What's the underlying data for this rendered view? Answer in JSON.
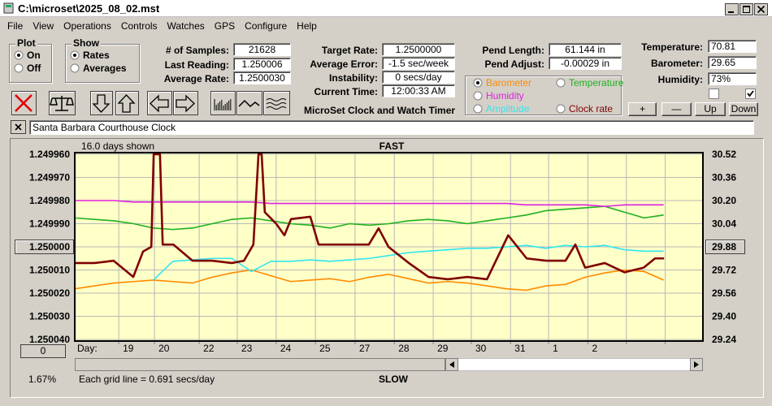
{
  "window": {
    "title": "C:\\microset\\2025_08_02.mst"
  },
  "menu": [
    "File",
    "View",
    "Operations",
    "Controls",
    "Watches",
    "GPS",
    "Configure",
    "Help"
  ],
  "plot_group": {
    "title": "Plot",
    "options": [
      "On",
      "Off"
    ],
    "selected": 0
  },
  "show_group": {
    "title": "Show",
    "options": [
      "Rates",
      "Averages"
    ],
    "selected": 0
  },
  "readouts_1": [
    {
      "label": "# of Samples:",
      "value": "21628"
    },
    {
      "label": "Last Reading:",
      "value": "1.250006"
    },
    {
      "label": "Average Rate:",
      "value": "1.2500030"
    }
  ],
  "readouts_2": [
    {
      "label": "Target Rate:",
      "value": "1.2500000"
    },
    {
      "label": "Average Error:",
      "value": "-1.5 sec/week"
    },
    {
      "label": "Instability:",
      "value": "0 secs/day"
    },
    {
      "label": "Current Time:",
      "value": "12:00:33 AM"
    }
  ],
  "readouts_3": [
    {
      "label": "Pend Length:",
      "value": "61.144 in"
    },
    {
      "label": "Pend Adjust:",
      "value": "-0.00029 in"
    }
  ],
  "readouts_4": [
    {
      "label": "Temperature:",
      "value": "70.81"
    },
    {
      "label": "Barometer:",
      "value": "29.65"
    },
    {
      "label": "Humidity:",
      "value": "73%"
    }
  ],
  "app_label": "MicroSet Clock and Watch Timer",
  "buttons": [
    "+",
    "—",
    "Up",
    "Down"
  ],
  "checkboxes": [
    false,
    true
  ],
  "watch_name": "Santa Barbara Courthouse Clock",
  "chart_data": {
    "type": "line",
    "days_shown": "16.0 days shown",
    "top_label": "FAST",
    "bottom_label": "SLOW",
    "x_label": "Day:",
    "footer": "Each grid line = 0.691 secs/day",
    "left_value": "1.67%",
    "button_label": "0",
    "grid": true,
    "legend_selected": 0,
    "xlim": [
      0,
      16
    ],
    "xticks": [
      {
        "value": 1.12,
        "label": "19"
      },
      {
        "value": 2.03,
        "label": "20"
      },
      {
        "value": 3.17,
        "label": "22"
      },
      {
        "value": 4.14,
        "label": "23"
      },
      {
        "value": 5.13,
        "label": "24"
      },
      {
        "value": 6.13,
        "label": "25"
      },
      {
        "value": 7.14,
        "label": "27"
      },
      {
        "value": 8.14,
        "label": "28"
      },
      {
        "value": 9.13,
        "label": "29"
      },
      {
        "value": 10.1,
        "label": "30"
      },
      {
        "value": 11.1,
        "label": "31"
      },
      {
        "value": 12.07,
        "label": "1"
      },
      {
        "value": 13.07,
        "label": "2"
      },
      {
        "value": 14.05,
        "label": null
      },
      {
        "value": 15.04,
        "label": null
      }
    ],
    "ylim": [
      1.25004,
      1.24996
    ],
    "yticks": [
      {
        "value": 1.24996,
        "label": "1.249960"
      },
      {
        "value": 1.24997,
        "label": "1.249970"
      },
      {
        "value": 1.24998,
        "label": "1.249980"
      },
      {
        "value": 1.24999,
        "label": "1.249990"
      },
      {
        "value": 1.25,
        "label": "1.250000"
      },
      {
        "value": 1.25001,
        "label": "1.250010"
      },
      {
        "value": 1.25002,
        "label": "1.250020"
      },
      {
        "value": 1.25003,
        "label": "1.250030"
      },
      {
        "value": 1.25004,
        "label": "1.250040"
      }
    ],
    "highlight_ytick": 4,
    "y2lim": [
      29.24,
      30.52
    ],
    "y2ticks": [
      30.52,
      30.36,
      {
        "value": 30.2,
        "label": "30.20"
      },
      30.04,
      29.88,
      29.72,
      29.56,
      {
        "value": 29.4,
        "label": "29.40"
      },
      29.24
    ],
    "highlight_y2tick": 4,
    "x": [
      0,
      0.5,
      1,
      1.5,
      2,
      2.5,
      3,
      3.5,
      4,
      4.5,
      5,
      5.5,
      6,
      6.5,
      7,
      7.5,
      8,
      8.5,
      9,
      9.5,
      10,
      10.5,
      11,
      11.5,
      12,
      12.5,
      13,
      13.5,
      14,
      14.5,
      15
    ],
    "series": [
      {
        "name": "Barometer",
        "color": "#ff8a00",
        "axis": "y2",
        "values": [
          29.59,
          29.61,
          29.63,
          29.64,
          29.65,
          29.64,
          29.63,
          29.67,
          29.7,
          29.72,
          29.68,
          29.64,
          29.65,
          29.66,
          29.64,
          29.67,
          29.69,
          29.66,
          29.63,
          29.64,
          29.63,
          29.61,
          29.59,
          29.58,
          29.61,
          29.62,
          29.67,
          29.7,
          29.72,
          29.71,
          29.65
        ]
      },
      {
        "name": "Temperature",
        "color": "#1fb01f",
        "axis": "y2",
        "values": [
          30.08,
          30.07,
          30.06,
          30.04,
          30.01,
          30.0,
          30.01,
          30.04,
          30.07,
          30.08,
          30.06,
          30.04,
          30.03,
          30.01,
          30.04,
          30.03,
          30.04,
          30.06,
          30.07,
          30.06,
          30.04,
          30.06,
          30.08,
          30.1,
          30.13,
          30.14,
          30.15,
          30.16,
          30.12,
          30.08,
          30.1
        ]
      },
      {
        "name": "Humidity",
        "color": "#e020e0",
        "axis": "y2",
        "values": [
          30.2,
          30.2,
          30.2,
          30.19,
          30.19,
          30.19,
          30.19,
          30.19,
          30.19,
          30.19,
          30.18,
          30.18,
          30.18,
          30.18,
          30.18,
          30.18,
          30.18,
          30.18,
          30.18,
          30.18,
          30.18,
          30.18,
          30.18,
          30.17,
          30.17,
          30.17,
          30.17,
          30.16,
          30.17,
          30.17,
          30.17
        ]
      },
      {
        "name": "Amplitude",
        "color": "#30e6f0",
        "axis": "y2",
        "values": [
          null,
          null,
          null,
          null,
          29.65,
          29.78,
          29.79,
          29.8,
          29.8,
          29.71,
          29.78,
          29.78,
          29.79,
          29.78,
          29.79,
          29.8,
          29.82,
          29.84,
          29.85,
          29.86,
          29.87,
          29.87,
          29.88,
          29.89,
          29.87,
          29.89,
          29.88,
          29.89,
          29.86,
          29.85,
          29.85
        ]
      },
      {
        "name": "Clock rate",
        "color": "#800000",
        "x": [
          0,
          0.5,
          0.99,
          1.49,
          1.74,
          1.95,
          2.01,
          2.17,
          2.24,
          2.51,
          3.0,
          3.5,
          4.0,
          4.31,
          4.55,
          4.68,
          4.76,
          4.84,
          5.13,
          5.34,
          5.51,
          6.0,
          6.21,
          6.5,
          7.0,
          7.49,
          7.74,
          7.99,
          8.51,
          9.01,
          9.5,
          10.0,
          10.5,
          11.04,
          11.51,
          12.01,
          12.5,
          12.75,
          13.0,
          13.5,
          14.0,
          14.49,
          14.78,
          15.01
        ],
        "values": [
          1.250007,
          1.250007,
          1.250006,
          1.250013,
          1.250002,
          1.25,
          1.24996,
          1.24996,
          1.249999,
          1.249999,
          1.250006,
          1.250006,
          1.250007,
          1.250006,
          1.249999,
          1.24996,
          1.24996,
          1.249985,
          1.24999,
          1.249995,
          1.249988,
          1.249987,
          1.249999,
          1.249999,
          1.249999,
          1.249999,
          1.249992,
          1.25,
          1.250007,
          1.250013,
          1.250014,
          1.250013,
          1.250014,
          1.249995,
          1.250005,
          1.250006,
          1.250006,
          1.249999,
          1.250009,
          1.250007,
          1.250011,
          1.250009,
          1.250005,
          1.250005
        ]
      }
    ]
  }
}
